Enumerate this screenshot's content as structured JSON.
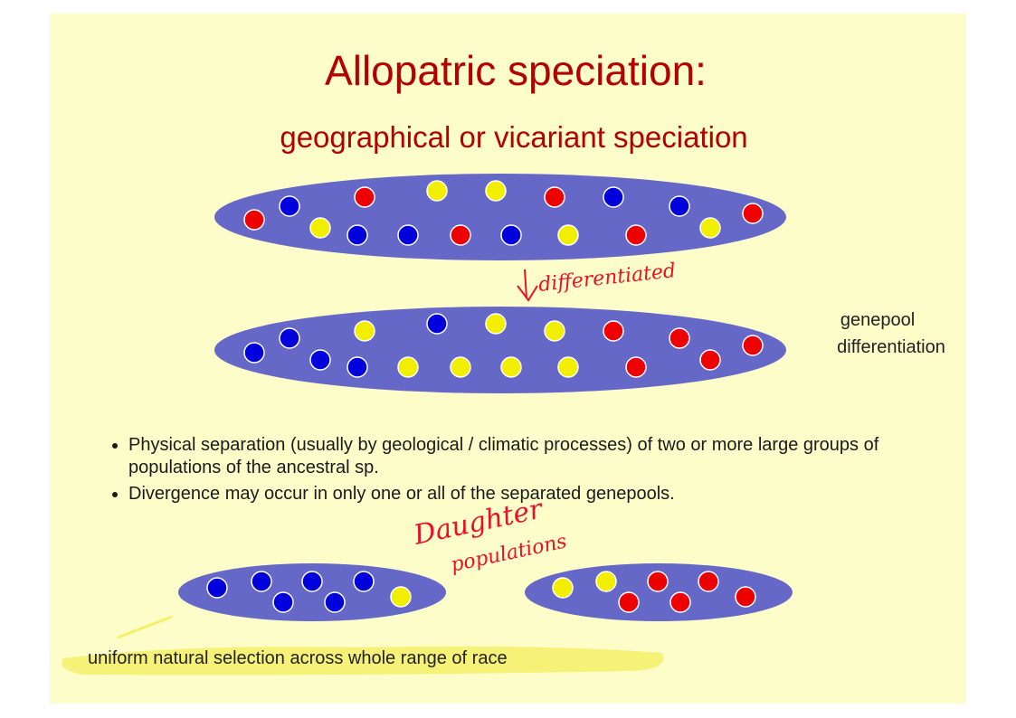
{
  "slide": {
    "title": "Allopatric speciation:",
    "subtitle": "geographical or vicariant speciation",
    "arrow_note": "differentiated",
    "side_label": [
      "genepool",
      "differentiation"
    ],
    "bullets": [
      "Physical separation (usually by geological / climatic processes) of two or more large groups of populations of the ancestral sp.",
      "Divergence may occur in only one or all of the separated genepools."
    ],
    "daughter_note": [
      "Daughter",
      "populations"
    ],
    "highlight": "uniform natural selection across whole range of race"
  }
}
